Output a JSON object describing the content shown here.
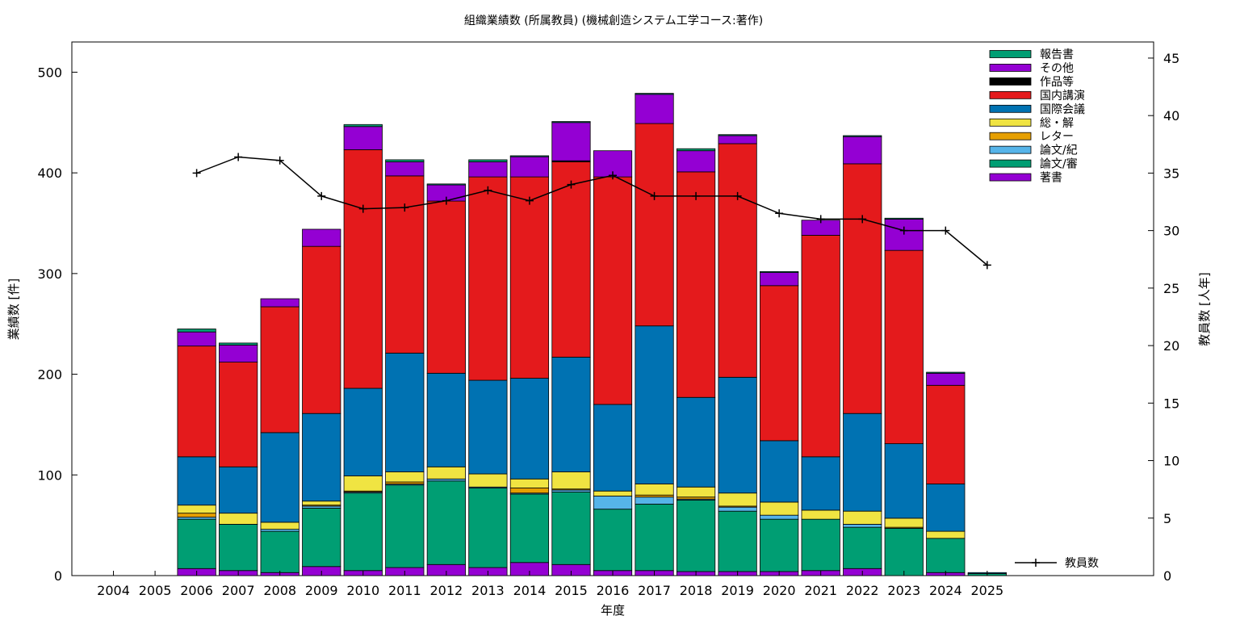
{
  "chart_data": {
    "type": "bar",
    "stacked": true,
    "title": "組織業績数 (所属教員) (機械創造システム工学コース:著作)",
    "xlabel": "年度",
    "ylabel": "業績数 [件]",
    "y2label": "教員数 [人年]",
    "ylim": [
      0,
      530
    ],
    "y2lim": [
      0,
      46.4
    ],
    "yticks": [
      0,
      100,
      200,
      300,
      400,
      500
    ],
    "y2ticks": [
      0,
      5,
      10,
      15,
      20,
      25,
      30,
      35,
      40,
      45
    ],
    "grid": false,
    "legend_position": "top-right",
    "categories": [
      "2004",
      "2005",
      "2006",
      "2007",
      "2008",
      "2009",
      "2010",
      "2011",
      "2012",
      "2013",
      "2014",
      "2015",
      "2016",
      "2017",
      "2018",
      "2019",
      "2020",
      "2021",
      "2022",
      "2023",
      "2024",
      "2025"
    ],
    "series": [
      {
        "name": "著書",
        "color": "#9400d3",
        "values": [
          0,
          0,
          7,
          5,
          3,
          9,
          5,
          8,
          11,
          8,
          13,
          11,
          5,
          5,
          4,
          4,
          4,
          5,
          7,
          0,
          3,
          0
        ]
      },
      {
        "name": "論文/審",
        "color": "#009e73",
        "values": [
          0,
          0,
          49,
          46,
          41,
          58,
          77,
          82,
          83,
          79,
          68,
          72,
          61,
          66,
          71,
          60,
          52,
          51,
          41,
          47,
          34,
          2
        ]
      },
      {
        "name": "論文/紀",
        "color": "#56b4e9",
        "values": [
          0,
          0,
          2,
          0,
          2,
          2,
          1,
          1,
          2,
          1,
          1,
          2,
          13,
          7,
          1,
          4,
          4,
          0,
          3,
          0,
          0,
          0
        ]
      },
      {
        "name": "レター",
        "color": "#e69f00",
        "values": [
          0,
          0,
          4,
          0,
          0,
          1,
          1,
          2,
          0,
          0,
          5,
          1,
          0,
          2,
          2,
          1,
          0,
          0,
          0,
          1,
          0,
          0
        ]
      },
      {
        "name": "総・解",
        "color": "#f0e442",
        "values": [
          0,
          0,
          8,
          11,
          7,
          4,
          15,
          10,
          12,
          13,
          9,
          17,
          5,
          11,
          10,
          13,
          13,
          9,
          13,
          9,
          7,
          0
        ]
      },
      {
        "name": "国際会議",
        "color": "#0072b2",
        "values": [
          0,
          0,
          48,
          46,
          89,
          87,
          87,
          118,
          93,
          93,
          100,
          114,
          86,
          157,
          89,
          115,
          61,
          53,
          97,
          74,
          47,
          1
        ]
      },
      {
        "name": "国内講演",
        "color": "#e41a1c",
        "values": [
          0,
          0,
          110,
          104,
          125,
          166,
          237,
          176,
          171,
          202,
          200,
          194,
          226,
          201,
          224,
          232,
          154,
          220,
          248,
          192,
          98,
          0
        ]
      },
      {
        "name": "作品等",
        "color": "#000000",
        "values": [
          0,
          0,
          0,
          0,
          0,
          0,
          0,
          0,
          0,
          0,
          0,
          1,
          0,
          0,
          0,
          0,
          0,
          0,
          0,
          0,
          0,
          0
        ]
      },
      {
        "name": "その他",
        "color": "#9400d3",
        "values": [
          0,
          0,
          14,
          17,
          8,
          17,
          23,
          14,
          16,
          15,
          20,
          38,
          26,
          29,
          21,
          8,
          13,
          15,
          27,
          31,
          12,
          0
        ]
      },
      {
        "name": "報告書",
        "color": "#009e73",
        "values": [
          0,
          0,
          3,
          2,
          0,
          0,
          2,
          2,
          1,
          2,
          1,
          1,
          0,
          1,
          2,
          1,
          1,
          0,
          1,
          1,
          1,
          0
        ]
      }
    ],
    "line_series": {
      "name": "教員数",
      "color": "#000000",
      "axis": "right",
      "values": [
        null,
        null,
        35.0,
        36.4,
        36.1,
        33.0,
        31.9,
        32.0,
        32.6,
        33.5,
        32.6,
        34.0,
        34.8,
        33.0,
        33.0,
        33.0,
        31.5,
        31.0,
        31.0,
        30.0,
        30.0,
        27.0
      ]
    }
  }
}
